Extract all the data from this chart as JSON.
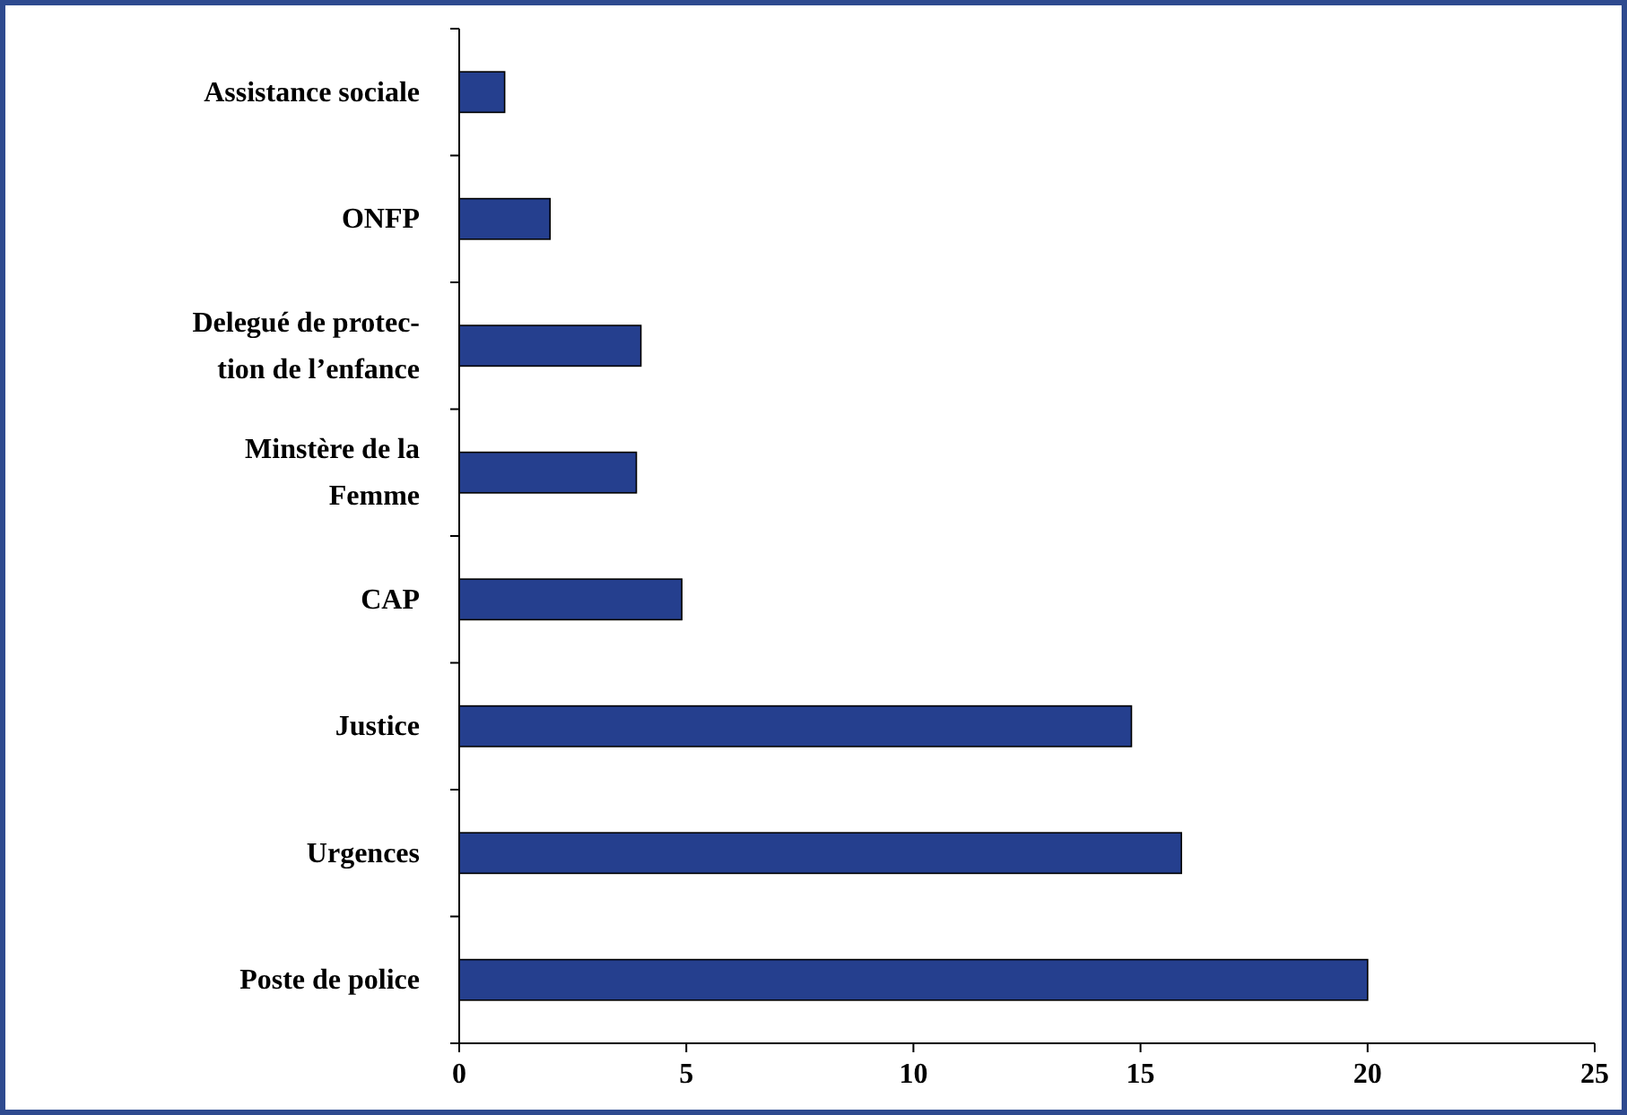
{
  "chart_data": {
    "type": "bar",
    "orientation": "horizontal",
    "categories": [
      "Assistance sociale",
      "ONFP",
      "Delegué de protec-\ntion de l’enfance",
      "Minstère de la\nFemme",
      "CAP",
      "Justice",
      "Urgences",
      "Poste de police"
    ],
    "values": [
      1,
      2,
      4,
      3.9,
      4.9,
      14.8,
      15.9,
      20
    ],
    "color": "#253f8e",
    "xlim": [
      0,
      25
    ],
    "xticks": [
      0,
      5,
      10,
      15,
      20,
      25
    ],
    "grid": false
  }
}
